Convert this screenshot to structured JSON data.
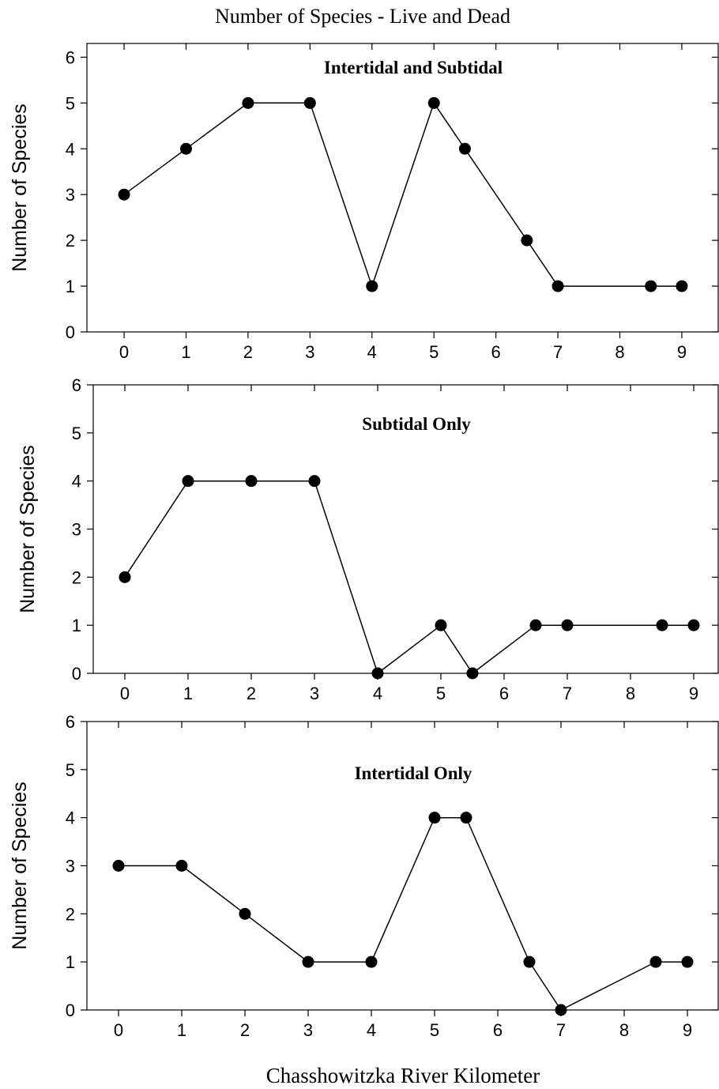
{
  "figure": {
    "title": "Number of Species - Live and Dead",
    "xlabel": "Chasshowitzka River Kilometer"
  },
  "chart_data": [
    {
      "type": "line",
      "title": "Intertidal and Subtidal",
      "ylabel": "Number of Species",
      "xlabel": "",
      "xlim": [
        -0.6,
        9.6
      ],
      "ylim": [
        0,
        6.3
      ],
      "xticks": [
        "0",
        "1",
        "2",
        "3",
        "4",
        "5",
        "6",
        "7",
        "8",
        "9"
      ],
      "yticks": [
        "0",
        "1",
        "2",
        "3",
        "4",
        "5",
        "6"
      ],
      "grid": false,
      "series": [
        {
          "x": [
            0,
            1,
            2,
            3,
            4,
            5,
            5.5,
            6.5,
            7,
            8.5,
            9
          ],
          "y": [
            3,
            4,
            5,
            5,
            1,
            5,
            4,
            2,
            1,
            1,
            1
          ]
        }
      ]
    },
    {
      "type": "line",
      "title": "Subtidal Only",
      "ylabel": "Number of Species",
      "xlabel": "",
      "xlim": [
        -0.5,
        9.4
      ],
      "ylim": [
        0,
        6
      ],
      "xticks": [
        "0",
        "1",
        "2",
        "3",
        "4",
        "5",
        "6",
        "7",
        "8",
        "9"
      ],
      "yticks": [
        "0",
        "1",
        "2",
        "3",
        "4",
        "5",
        "6"
      ],
      "grid": false,
      "series": [
        {
          "x": [
            0,
            1,
            2,
            3,
            4,
            5,
            5.5,
            6.5,
            7,
            8.5,
            9
          ],
          "y": [
            2,
            4,
            4,
            4,
            0,
            1,
            0,
            1,
            1,
            1,
            1
          ]
        }
      ]
    },
    {
      "type": "line",
      "title": "Intertidal Only",
      "ylabel": "Number of Species",
      "xlabel": "Chasshowitzka River Kilometer",
      "xlim": [
        -0.5,
        9.5
      ],
      "ylim": [
        0,
        6
      ],
      "xticks": [
        "0",
        "1",
        "2",
        "3",
        "4",
        "5",
        "6",
        "7",
        "8",
        "9"
      ],
      "yticks": [
        "0",
        "1",
        "2",
        "3",
        "4",
        "5",
        "6"
      ],
      "grid": false,
      "series": [
        {
          "x": [
            0,
            1,
            2,
            3,
            4,
            5,
            5.5,
            6.5,
            7,
            8.5,
            9
          ],
          "y": [
            3,
            3,
            2,
            1,
            1,
            4,
            4,
            1,
            0,
            1,
            1
          ]
        }
      ]
    }
  ]
}
